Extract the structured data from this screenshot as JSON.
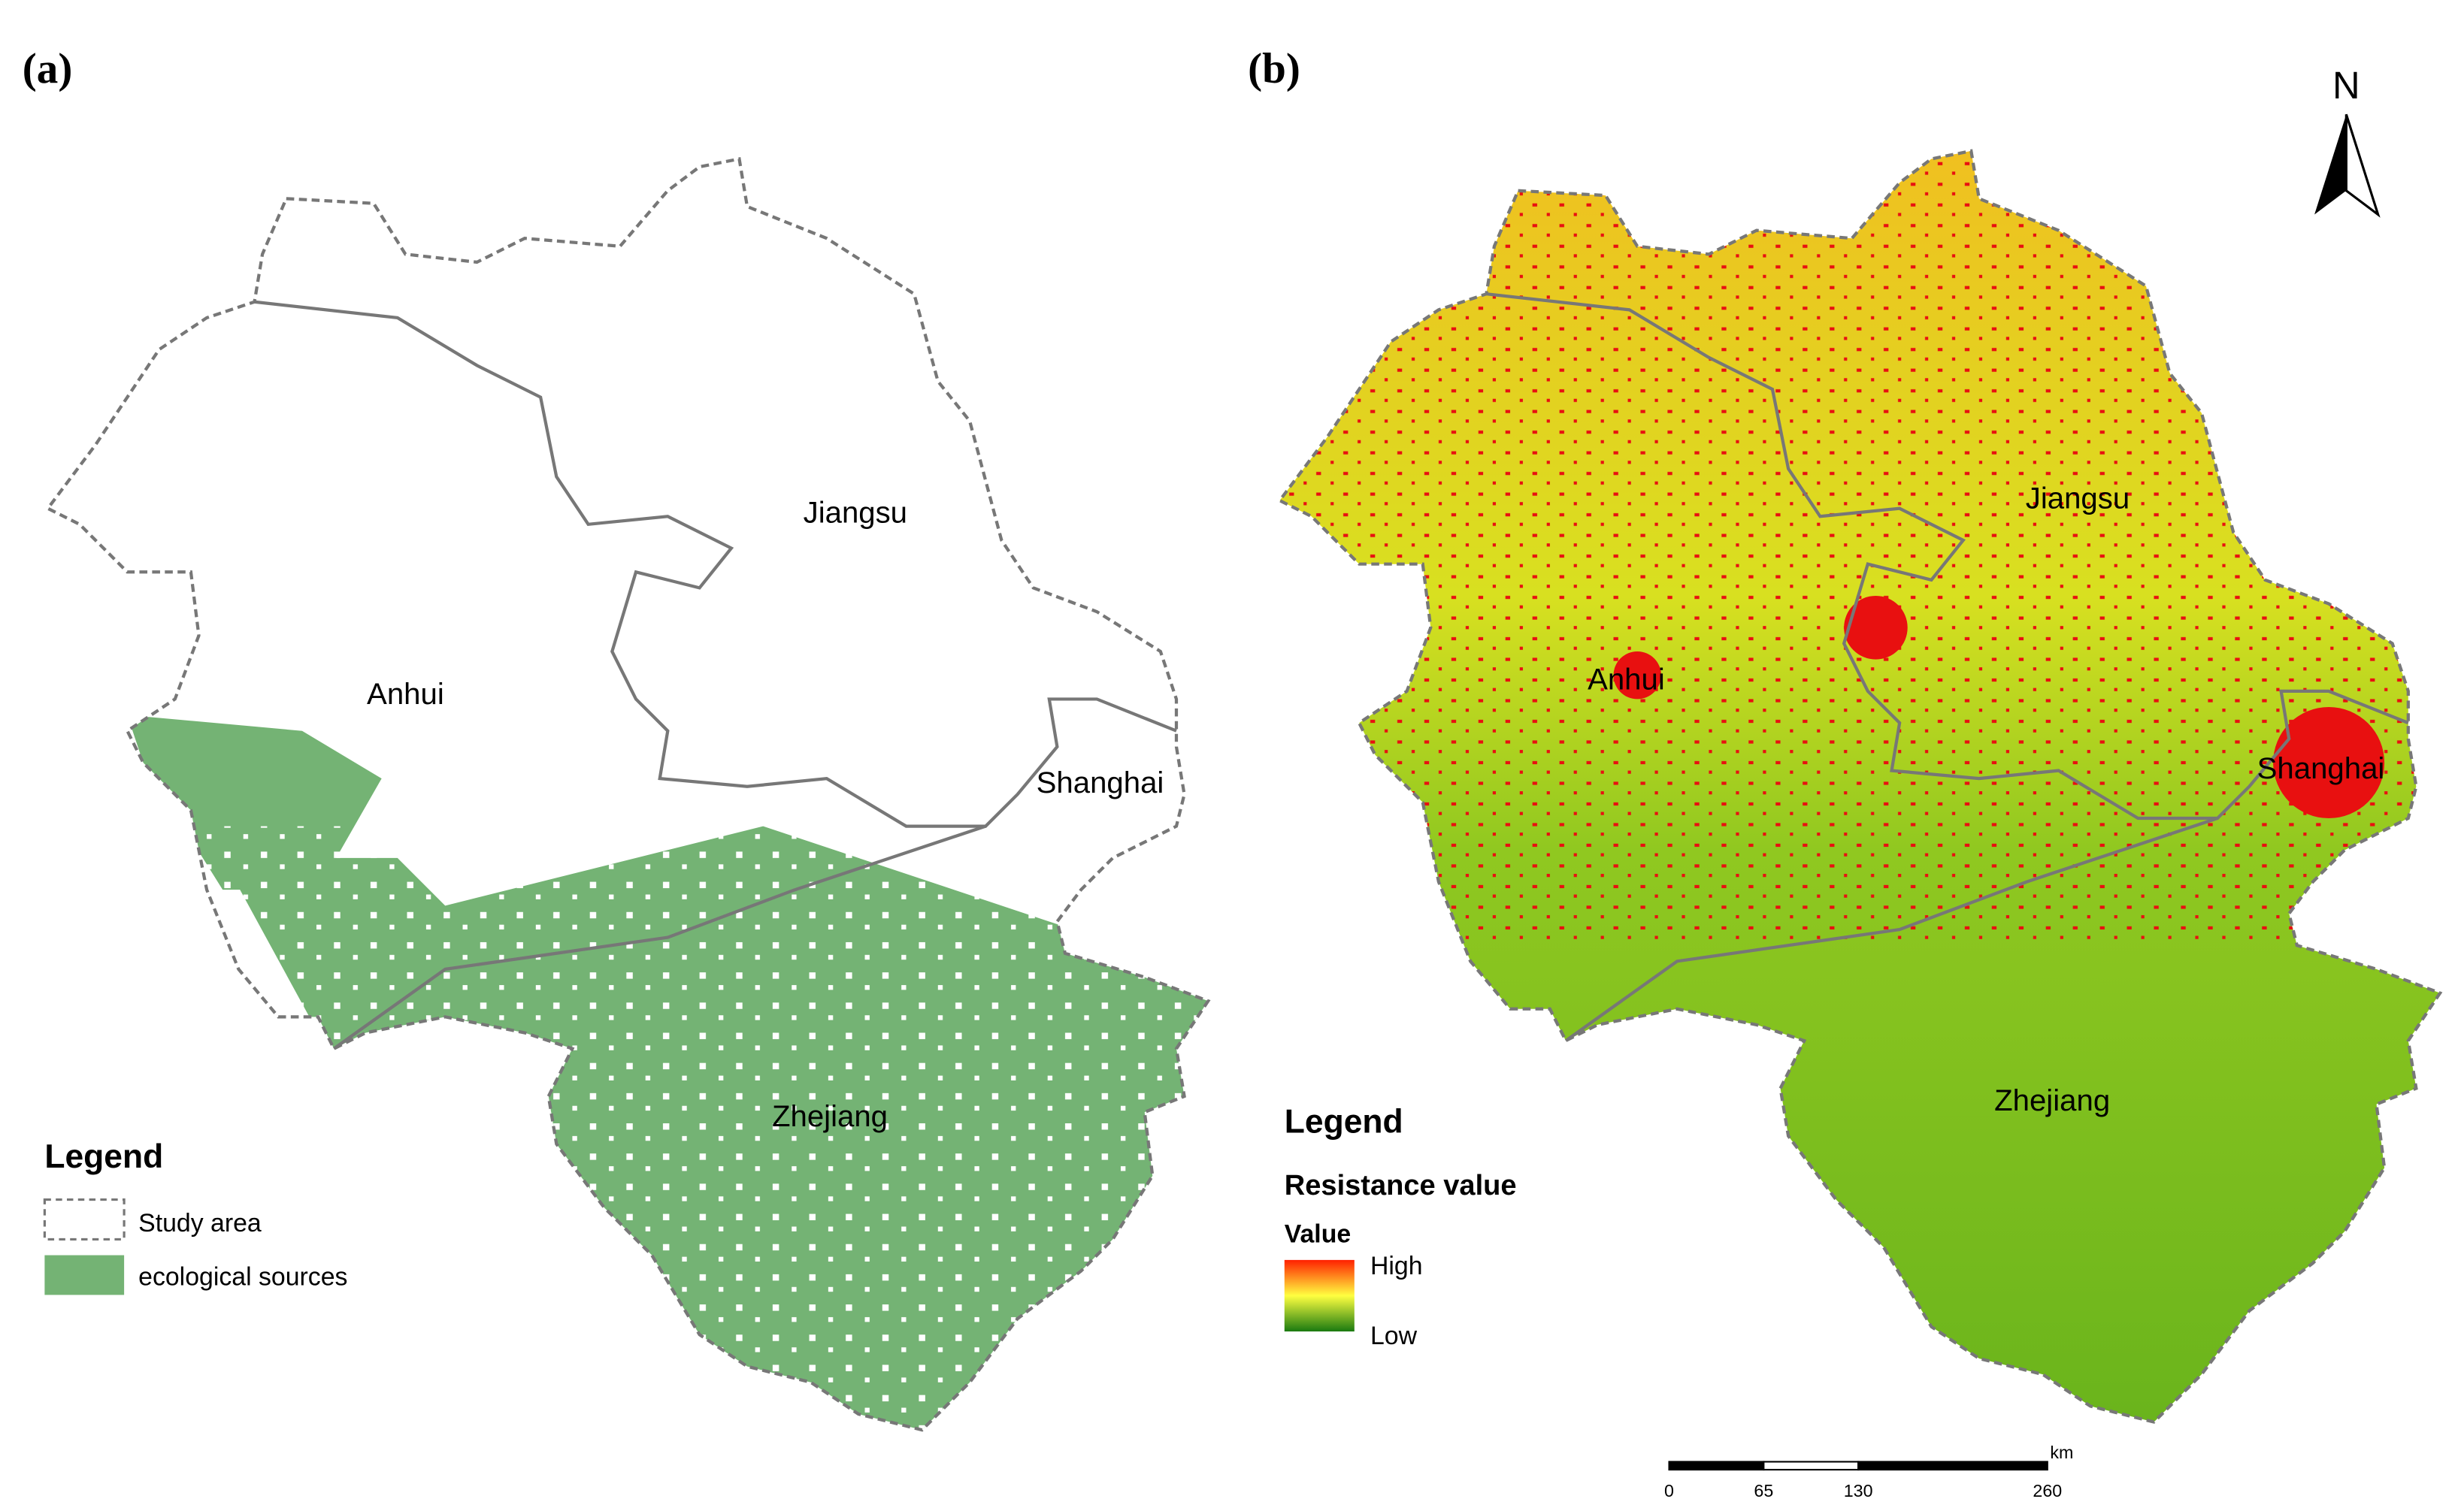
{
  "panel_a": {
    "label": "(a)",
    "provinces": [
      "Jiangsu",
      "Anhui",
      "Shanghai",
      "Zhejiang"
    ],
    "legend": {
      "title": "Legend",
      "items": [
        "Study area",
        "ecological sources"
      ]
    }
  },
  "panel_b": {
    "label": "(b)",
    "provinces": [
      "Jiangsu",
      "Anhui",
      "Shanghai",
      "Zhejiang"
    ],
    "north": "N",
    "legend": {
      "title": "Legend",
      "subtitle": "Resistance value",
      "field": "Value",
      "high": "High",
      "low": "Low"
    },
    "scale_bar": {
      "ticks": [
        0,
        65,
        130,
        260
      ],
      "unit": "km"
    }
  }
}
